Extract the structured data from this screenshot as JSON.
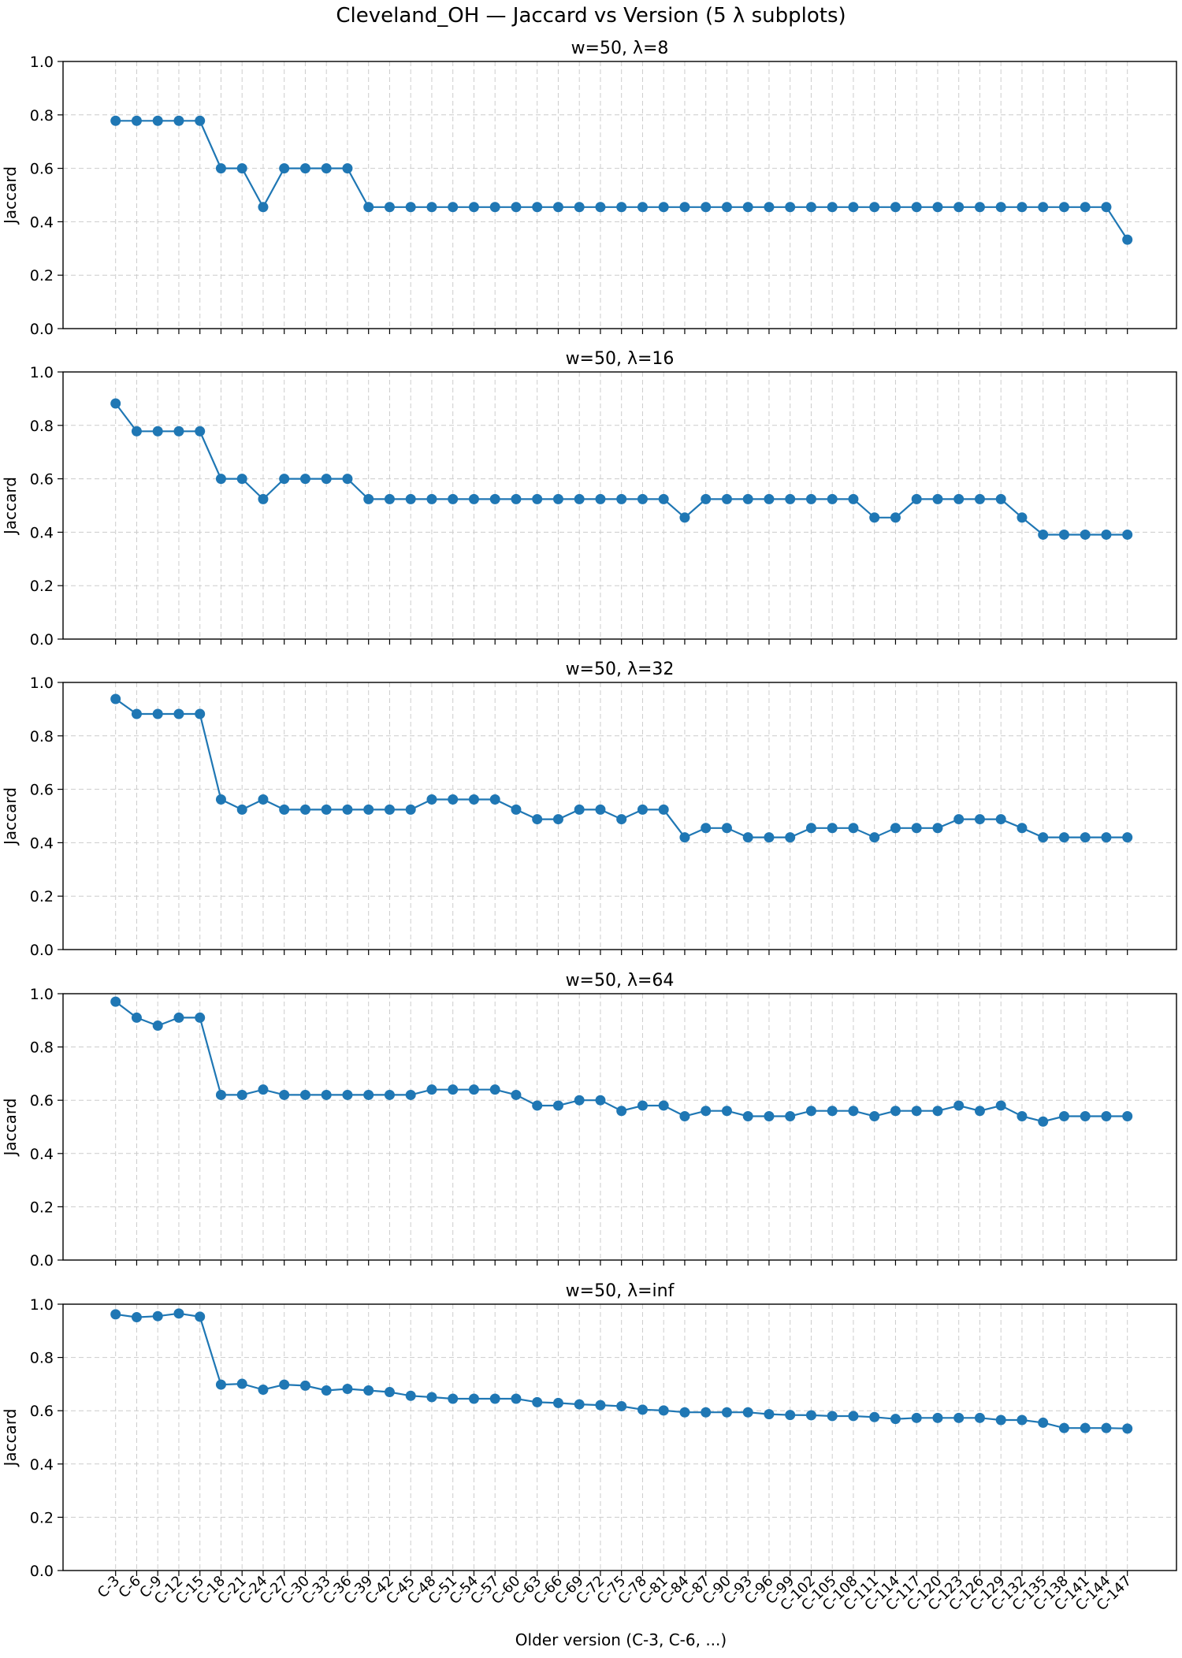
{
  "title": "Cleveland_OH — Jaccard vs Version (5 λ subplots)",
  "xlabel": "Older version (C-3, C-6, ...)",
  "ylabel": "Jaccard",
  "colors": {
    "series": "#1f77b4",
    "grid": "#cccccc",
    "axis": "#000000"
  },
  "chart_data": [
    {
      "type": "line",
      "title": "w=50, λ=8",
      "ylim": [
        0,
        1
      ],
      "yticks": [
        "0.0",
        "0.2",
        "0.4",
        "0.6",
        "0.8",
        "1.0"
      ],
      "grid": true,
      "values": [
        0.778,
        0.778,
        0.778,
        0.778,
        0.778,
        0.6,
        0.6,
        0.455,
        0.6,
        0.6,
        0.6,
        0.6,
        0.455,
        0.455,
        0.455,
        0.455,
        0.455,
        0.455,
        0.455,
        0.455,
        0.455,
        0.455,
        0.455,
        0.455,
        0.455,
        0.455,
        0.455,
        0.455,
        0.455,
        0.455,
        0.455,
        0.455,
        0.455,
        0.455,
        0.455,
        0.455,
        0.455,
        0.455,
        0.455,
        0.455,
        0.455,
        0.455,
        0.455,
        0.455,
        0.455,
        0.455,
        0.455,
        0.455,
        0.333
      ]
    },
    {
      "type": "line",
      "title": "w=50, λ=16",
      "ylim": [
        0,
        1
      ],
      "yticks": [
        "0.0",
        "0.2",
        "0.4",
        "0.6",
        "0.8",
        "1.0"
      ],
      "grid": true,
      "values": [
        0.882,
        0.778,
        0.778,
        0.778,
        0.778,
        0.6,
        0.6,
        0.524,
        0.6,
        0.6,
        0.6,
        0.6,
        0.524,
        0.524,
        0.524,
        0.524,
        0.524,
        0.524,
        0.524,
        0.524,
        0.524,
        0.524,
        0.524,
        0.524,
        0.524,
        0.524,
        0.524,
        0.455,
        0.524,
        0.524,
        0.524,
        0.524,
        0.524,
        0.524,
        0.524,
        0.524,
        0.455,
        0.455,
        0.524,
        0.524,
        0.524,
        0.524,
        0.524,
        0.455,
        0.391,
        0.391,
        0.391,
        0.391,
        0.391
      ]
    },
    {
      "type": "line",
      "title": "w=50, λ=32",
      "ylim": [
        0,
        1
      ],
      "yticks": [
        "0.0",
        "0.2",
        "0.4",
        "0.6",
        "0.8",
        "1.0"
      ],
      "grid": true,
      "values": [
        0.938,
        0.882,
        0.882,
        0.882,
        0.882,
        0.562,
        0.524,
        0.562,
        0.524,
        0.524,
        0.524,
        0.524,
        0.524,
        0.524,
        0.524,
        0.562,
        0.562,
        0.562,
        0.562,
        0.524,
        0.488,
        0.488,
        0.524,
        0.524,
        0.488,
        0.524,
        0.524,
        0.42,
        0.455,
        0.455,
        0.42,
        0.42,
        0.42,
        0.455,
        0.455,
        0.455,
        0.42,
        0.455,
        0.455,
        0.455,
        0.488,
        0.488,
        0.488,
        0.455,
        0.42,
        0.42,
        0.42,
        0.42,
        0.42
      ]
    },
    {
      "type": "line",
      "title": "w=50, λ=64",
      "ylim": [
        0,
        1
      ],
      "yticks": [
        "0.0",
        "0.2",
        "0.4",
        "0.6",
        "0.8",
        "1.0"
      ],
      "grid": true,
      "values": [
        0.97,
        0.91,
        0.88,
        0.91,
        0.91,
        0.62,
        0.62,
        0.64,
        0.62,
        0.62,
        0.62,
        0.62,
        0.62,
        0.62,
        0.62,
        0.64,
        0.64,
        0.64,
        0.64,
        0.62,
        0.58,
        0.58,
        0.6,
        0.6,
        0.56,
        0.58,
        0.58,
        0.54,
        0.56,
        0.56,
        0.54,
        0.54,
        0.54,
        0.56,
        0.56,
        0.56,
        0.54,
        0.56,
        0.56,
        0.56,
        0.58,
        0.56,
        0.58,
        0.54,
        0.52,
        0.54,
        0.54,
        0.54,
        0.54
      ]
    },
    {
      "type": "line",
      "title": "w=50, λ=inf",
      "ylim": [
        0,
        1
      ],
      "yticks": [
        "0.0",
        "0.2",
        "0.4",
        "0.6",
        "0.8",
        "1.0"
      ],
      "grid": true,
      "values": [
        0.962,
        0.951,
        0.955,
        0.965,
        0.953,
        0.698,
        0.701,
        0.679,
        0.698,
        0.694,
        0.676,
        0.682,
        0.676,
        0.67,
        0.656,
        0.651,
        0.645,
        0.645,
        0.645,
        0.645,
        0.632,
        0.629,
        0.624,
        0.621,
        0.617,
        0.604,
        0.601,
        0.594,
        0.594,
        0.594,
        0.594,
        0.587,
        0.584,
        0.583,
        0.58,
        0.58,
        0.576,
        0.569,
        0.573,
        0.573,
        0.573,
        0.573,
        0.565,
        0.565,
        0.555,
        0.535,
        0.535,
        0.535,
        0.533
      ]
    }
  ],
  "x": [
    "C-3",
    "C-6",
    "C-9",
    "C-12",
    "C-15",
    "C-18",
    "C-21",
    "C-24",
    "C-27",
    "C-30",
    "C-33",
    "C-36",
    "C-39",
    "C-42",
    "C-45",
    "C-48",
    "C-51",
    "C-54",
    "C-57",
    "C-60",
    "C-63",
    "C-66",
    "C-69",
    "C-72",
    "C-75",
    "C-78",
    "C-81",
    "C-84",
    "C-87",
    "C-90",
    "C-93",
    "C-96",
    "C-99",
    "C-102",
    "C-105",
    "C-108",
    "C-111",
    "C-114",
    "C-117",
    "C-120",
    "C-123",
    "C-126",
    "C-129",
    "C-132",
    "C-135",
    "C-138",
    "C-141",
    "C-144",
    "C-147"
  ]
}
